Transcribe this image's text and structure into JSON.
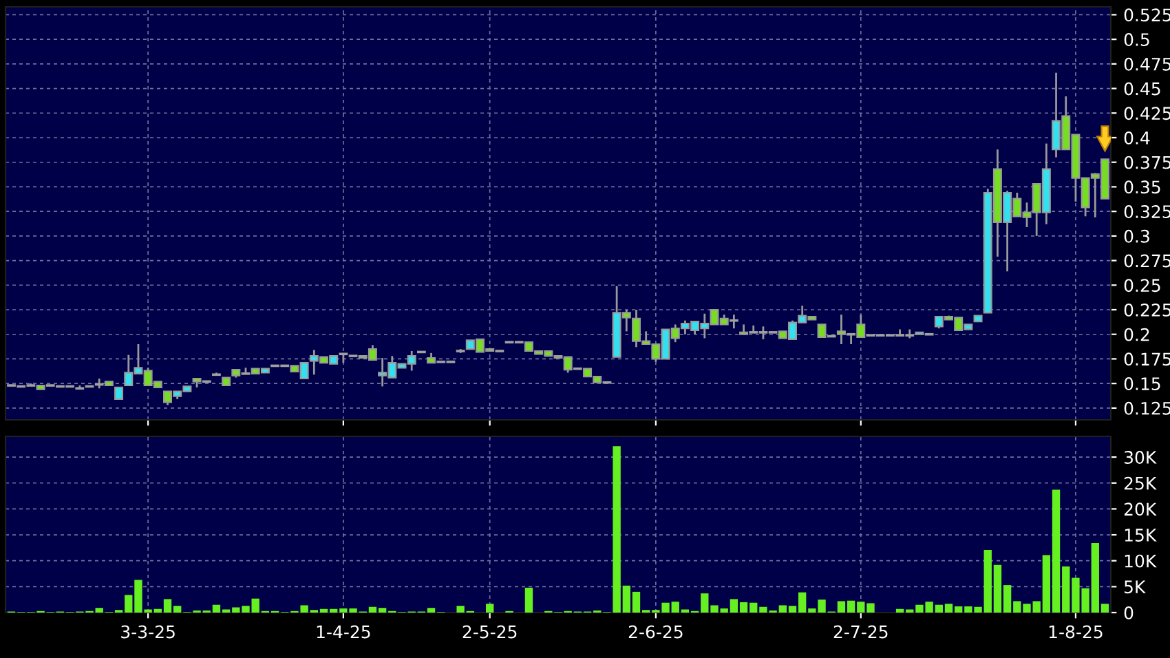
{
  "chart_data": [
    {
      "type": "candlestick",
      "tick_labels": "y",
      "grid": true,
      "ylim": [
        0.113,
        0.533
      ],
      "yticks": [
        0.125,
        0.15,
        0.175,
        0.2,
        0.225,
        0.25,
        0.275,
        0.3,
        0.325,
        0.35,
        0.375,
        0.4,
        0.425,
        0.45,
        0.475,
        0.5,
        0.525
      ],
      "ohlc": [
        [
          0.148,
          0.148,
          0.148,
          0.148
        ],
        [
          0.147,
          0.147,
          0.147,
          0.147
        ],
        [
          0.148,
          0.15,
          0.148,
          0.148
        ],
        [
          0.148,
          0.148,
          0.144,
          0.144
        ],
        [
          0.148,
          0.148,
          0.148,
          0.148
        ],
        [
          0.147,
          0.147,
          0.147,
          0.147
        ],
        [
          0.147,
          0.147,
          0.147,
          0.147
        ],
        [
          0.145,
          0.148,
          0.145,
          0.145
        ],
        [
          0.147,
          0.147,
          0.147,
          0.147
        ],
        [
          0.149,
          0.155,
          0.145,
          0.149
        ],
        [
          0.152,
          0.152,
          0.148,
          0.148
        ],
        [
          0.134,
          0.146,
          0.134,
          0.146
        ],
        [
          0.148,
          0.179,
          0.148,
          0.161
        ],
        [
          0.16,
          0.19,
          0.16,
          0.166
        ],
        [
          0.163,
          0.166,
          0.148,
          0.148
        ],
        [
          0.152,
          0.152,
          0.146,
          0.146
        ],
        [
          0.142,
          0.142,
          0.128,
          0.131
        ],
        [
          0.137,
          0.142,
          0.134,
          0.142
        ],
        [
          0.142,
          0.147,
          0.142,
          0.147
        ],
        [
          0.155,
          0.155,
          0.146,
          0.152
        ],
        [
          0.152,
          0.152,
          0.152,
          0.152
        ],
        [
          0.159,
          0.161,
          0.159,
          0.159
        ],
        [
          0.156,
          0.156,
          0.148,
          0.148
        ],
        [
          0.164,
          0.164,
          0.156,
          0.158
        ],
        [
          0.16,
          0.166,
          0.16,
          0.16
        ],
        [
          0.165,
          0.165,
          0.16,
          0.16
        ],
        [
          0.161,
          0.165,
          0.161,
          0.165
        ],
        [
          0.168,
          0.168,
          0.168,
          0.168
        ],
        [
          0.168,
          0.168,
          0.168,
          0.168
        ],
        [
          0.168,
          0.168,
          0.162,
          0.162
        ],
        [
          0.155,
          0.171,
          0.155,
          0.171
        ],
        [
          0.173,
          0.184,
          0.159,
          0.178
        ],
        [
          0.177,
          0.177,
          0.171,
          0.171
        ],
        [
          0.17,
          0.178,
          0.17,
          0.178
        ],
        [
          0.18,
          0.18,
          0.171,
          0.18
        ],
        [
          0.178,
          0.178,
          0.178,
          0.178
        ],
        [
          0.178,
          0.178,
          0.176,
          0.176
        ],
        [
          0.185,
          0.189,
          0.174,
          0.174
        ],
        [
          0.158,
          0.176,
          0.147,
          0.161
        ],
        [
          0.156,
          0.178,
          0.156,
          0.171
        ],
        [
          0.166,
          0.17,
          0.166,
          0.17
        ],
        [
          0.17,
          0.183,
          0.163,
          0.178
        ],
        [
          0.182,
          0.182,
          0.182,
          0.182
        ],
        [
          0.176,
          0.181,
          0.171,
          0.171
        ],
        [
          0.172,
          0.172,
          0.172,
          0.172
        ],
        [
          0.172,
          0.172,
          0.172,
          0.172
        ],
        [
          0.183,
          0.185,
          0.181,
          0.183
        ],
        [
          0.185,
          0.194,
          0.185,
          0.194
        ],
        [
          0.195,
          0.195,
          0.182,
          0.182
        ],
        [
          0.185,
          0.185,
          0.183,
          0.183
        ],
        [
          0.183,
          0.183,
          0.183,
          0.183
        ],
        [
          0.192,
          0.192,
          0.192,
          0.192
        ],
        [
          0.192,
          0.193,
          0.192,
          0.192
        ],
        [
          0.192,
          0.192,
          0.183,
          0.183
        ],
        [
          0.183,
          0.183,
          0.18,
          0.18
        ],
        [
          0.183,
          0.183,
          0.178,
          0.178
        ],
        [
          0.178,
          0.178,
          0.176,
          0.176
        ],
        [
          0.177,
          0.177,
          0.161,
          0.164
        ],
        [
          0.165,
          0.165,
          0.165,
          0.165
        ],
        [
          0.165,
          0.165,
          0.157,
          0.157
        ],
        [
          0.157,
          0.157,
          0.151,
          0.151
        ],
        [
          0.151,
          0.151,
          0.151,
          0.151
        ],
        [
          0.177,
          0.249,
          0.177,
          0.222
        ],
        [
          0.222,
          0.225,
          0.203,
          0.217
        ],
        [
          0.216,
          0.225,
          0.187,
          0.193
        ],
        [
          0.193,
          0.203,
          0.19,
          0.19
        ],
        [
          0.19,
          0.19,
          0.172,
          0.175
        ],
        [
          0.175,
          0.205,
          0.175,
          0.205
        ],
        [
          0.206,
          0.21,
          0.192,
          0.196
        ],
        [
          0.206,
          0.214,
          0.2,
          0.211
        ],
        [
          0.204,
          0.213,
          0.2,
          0.213
        ],
        [
          0.206,
          0.221,
          0.196,
          0.211
        ],
        [
          0.225,
          0.225,
          0.21,
          0.21
        ],
        [
          0.216,
          0.22,
          0.21,
          0.21
        ],
        [
          0.214,
          0.22,
          0.206,
          0.214
        ],
        [
          0.202,
          0.21,
          0.2,
          0.2
        ],
        [
          0.202,
          0.209,
          0.202,
          0.202
        ],
        [
          0.202,
          0.208,
          0.195,
          0.202
        ],
        [
          0.202,
          0.202,
          0.202,
          0.202
        ],
        [
          0.203,
          0.203,
          0.196,
          0.196
        ],
        [
          0.195,
          0.214,
          0.195,
          0.212
        ],
        [
          0.212,
          0.229,
          0.212,
          0.219
        ],
        [
          0.218,
          0.218,
          0.215,
          0.215
        ],
        [
          0.21,
          0.21,
          0.197,
          0.197
        ],
        [
          0.198,
          0.198,
          0.198,
          0.198
        ],
        [
          0.203,
          0.22,
          0.19,
          0.2
        ],
        [
          0.2,
          0.2,
          0.19,
          0.2
        ],
        [
          0.21,
          0.22,
          0.197,
          0.197
        ],
        [
          0.199,
          0.199,
          0.199,
          0.199
        ],
        [
          0.199,
          0.199,
          0.199,
          0.199
        ],
        [
          0.199,
          0.199,
          0.199,
          0.199
        ],
        [
          0.199,
          0.205,
          0.199,
          0.199
        ],
        [
          0.199,
          0.205,
          0.196,
          0.199
        ],
        [
          0.2,
          0.202,
          0.2,
          0.202
        ],
        [
          0.2,
          0.2,
          0.2,
          0.2
        ],
        [
          0.208,
          0.218,
          0.206,
          0.218
        ],
        [
          0.218,
          0.219,
          0.215,
          0.215
        ],
        [
          0.217,
          0.217,
          0.204,
          0.204
        ],
        [
          0.205,
          0.21,
          0.205,
          0.21
        ],
        [
          0.213,
          0.219,
          0.213,
          0.219
        ],
        [
          0.222,
          0.348,
          0.222,
          0.344
        ],
        [
          0.368,
          0.388,
          0.279,
          0.314
        ],
        [
          0.314,
          0.346,
          0.264,
          0.344
        ],
        [
          0.338,
          0.344,
          0.32,
          0.32
        ],
        [
          0.324,
          0.334,
          0.309,
          0.319
        ],
        [
          0.353,
          0.353,
          0.3,
          0.324
        ],
        [
          0.324,
          0.394,
          0.312,
          0.368
        ],
        [
          0.388,
          0.466,
          0.38,
          0.417
        ],
        [
          0.422,
          0.442,
          0.388,
          0.388
        ],
        [
          0.403,
          0.403,
          0.335,
          0.359
        ],
        [
          0.359,
          0.359,
          0.32,
          0.329
        ],
        [
          0.363,
          0.364,
          0.319,
          0.359
        ],
        [
          0.378,
          0.378,
          0.338,
          0.338
        ]
      ],
      "colors": [
        "#a0a0a0",
        "#a0a0a0",
        "#a0a0a0",
        "#77dd22",
        "#a0a0a0",
        "#a0a0a0",
        "#a0a0a0",
        "#a0a0a0",
        "#a0a0a0",
        "#a0a0a0",
        "#77dd22",
        "#33e0f0",
        "#33e0f0",
        "#33e0f0",
        "#77dd22",
        "#77dd22",
        "#77dd22",
        "#33e0f0",
        "#33e0f0",
        "#77dd22",
        "#a0a0a0",
        "#a0a0a0",
        "#77dd22",
        "#77dd22",
        "#a0a0a0",
        "#77dd22",
        "#33e0f0",
        "#a0a0a0",
        "#a0a0a0",
        "#77dd22",
        "#33e0f0",
        "#33e0f0",
        "#77dd22",
        "#33e0f0",
        "#a0a0a0",
        "#a0a0a0",
        "#77dd22",
        "#77dd22",
        "#33e0f0",
        "#33e0f0",
        "#33e0f0",
        "#33e0f0",
        "#a0a0a0",
        "#77dd22",
        "#a0a0a0",
        "#a0a0a0",
        "#a0a0a0",
        "#33e0f0",
        "#77dd22",
        "#77dd22",
        "#a0a0a0",
        "#a0a0a0",
        "#a0a0a0",
        "#77dd22",
        "#77dd22",
        "#77dd22",
        "#77dd22",
        "#77dd22",
        "#a0a0a0",
        "#77dd22",
        "#77dd22",
        "#a0a0a0",
        "#33e0f0",
        "#77dd22",
        "#77dd22",
        "#77dd22",
        "#77dd22",
        "#33e0f0",
        "#77dd22",
        "#33e0f0",
        "#33e0f0",
        "#33e0f0",
        "#77dd22",
        "#77dd22",
        "#a0a0a0",
        "#77dd22",
        "#a0a0a0",
        "#a0a0a0",
        "#a0a0a0",
        "#77dd22",
        "#33e0f0",
        "#33e0f0",
        "#77dd22",
        "#77dd22",
        "#a0a0a0",
        "#77dd22",
        "#a0a0a0",
        "#77dd22",
        "#a0a0a0",
        "#a0a0a0",
        "#a0a0a0",
        "#a0a0a0",
        "#a0a0a0",
        "#33e0f0",
        "#a0a0a0",
        "#33e0f0",
        "#77dd22",
        "#77dd22",
        "#33e0f0",
        "#33e0f0",
        "#33e0f0",
        "#77dd22",
        "#33e0f0",
        "#77dd22",
        "#77dd22",
        "#77dd22",
        "#33e0f0",
        "#33e0f0",
        "#77dd22",
        "#77dd22",
        "#77dd22",
        "#77dd22",
        "#77dd22"
      ]
    },
    {
      "type": "bar",
      "grid": true,
      "color": "#66f022",
      "categories": [
        null,
        null,
        null,
        null,
        null,
        null,
        null,
        null,
        null,
        null,
        null,
        null,
        null,
        null,
        "3-3-25",
        null,
        null,
        null,
        null,
        null,
        null,
        null,
        null,
        null,
        null,
        null,
        null,
        null,
        null,
        null,
        null,
        null,
        null,
        null,
        "1-4-25",
        null,
        null,
        null,
        null,
        null,
        null,
        null,
        null,
        null,
        null,
        null,
        null,
        null,
        null,
        "2-5-25",
        null,
        null,
        null,
        null,
        null,
        null,
        null,
        null,
        null,
        null,
        null,
        null,
        null,
        null,
        null,
        null,
        "2-6-25",
        null,
        null,
        null,
        null,
        null,
        null,
        null,
        null,
        null,
        null,
        null,
        null,
        null,
        null,
        null,
        null,
        null,
        null,
        null,
        null,
        "2-7-25",
        null,
        null,
        null,
        null,
        null,
        null,
        null,
        null,
        null,
        null,
        null,
        null,
        null,
        null,
        null,
        null,
        null,
        null,
        null,
        null,
        null,
        "1-8-25",
        null,
        null,
        null
      ],
      "ylim": [
        0,
        34000
      ],
      "yticks": [
        0,
        {
          "value": 5000,
          "label": "5K"
        },
        {
          "value": 10000,
          "label": "10K"
        },
        {
          "value": 15000,
          "label": "15K"
        },
        {
          "value": 20000,
          "label": "20K"
        },
        {
          "value": 25000,
          "label": "25K"
        },
        {
          "value": 30000,
          "label": "30K"
        }
      ],
      "values": [
        200,
        100,
        100,
        300,
        100,
        200,
        100,
        200,
        300,
        900,
        100,
        500,
        3400,
        6300,
        600,
        700,
        2600,
        1300,
        100,
        400,
        400,
        1500,
        600,
        1000,
        1300,
        2700,
        300,
        300,
        100,
        300,
        1400,
        500,
        700,
        700,
        800,
        800,
        200,
        1100,
        900,
        300,
        100,
        200,
        200,
        900,
        100,
        0,
        1300,
        300,
        0,
        1700,
        0,
        300,
        0,
        4800,
        0,
        300,
        100,
        300,
        200,
        200,
        400,
        100,
        32100,
        5200,
        4000,
        500,
        500,
        1900,
        2100,
        600,
        300,
        3700,
        1400,
        800,
        2600,
        2000,
        1900,
        1100,
        400,
        1400,
        1300,
        3900,
        800,
        2500,
        200,
        2200,
        2300,
        2100,
        1800,
        0,
        0,
        700,
        600,
        1500,
        2100,
        1500,
        1700,
        1200,
        1200,
        1100,
        12100,
        9200,
        5300,
        2200,
        1700,
        2200,
        11100,
        23700,
        8900,
        6700,
        4700,
        13400,
        1700
      ]
    }
  ]
}
